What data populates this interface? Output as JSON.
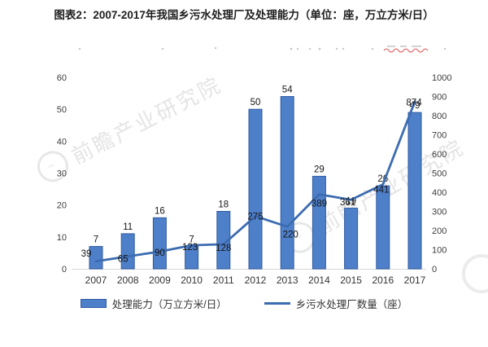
{
  "title": {
    "text": "图表2：2007-2017年我国乡污水处理厂及处理能力（单位：座，万立方米/日）"
  },
  "watermark": {
    "text": "前瞻产业研究院"
  },
  "chart_data": {
    "type": "combo",
    "title": "2007-2017年我国乡污水处理厂及处理能力",
    "categories": [
      "2007",
      "2008",
      "2009",
      "2010",
      "2011",
      "2012",
      "2013",
      "2014",
      "2015",
      "2016",
      "2017"
    ],
    "series": [
      {
        "name": "处理能力（万立方米/日）",
        "type": "bar",
        "axis": "left",
        "values": [
          7,
          11,
          16,
          7,
          18,
          50,
          54,
          29,
          19,
          26,
          49
        ]
      },
      {
        "name": "乡污水处理厂数量（座）",
        "type": "line",
        "axis": "right",
        "values": [
          39,
          65,
          90,
          123,
          128,
          275,
          220,
          389,
          361,
          441,
          874
        ]
      }
    ],
    "left_axis": {
      "min": 0,
      "max": 60,
      "step": 10
    },
    "right_axis": {
      "min": 0,
      "max": 1000,
      "step": 100
    },
    "legend_position": "bottom",
    "grid": false,
    "colors": {
      "bar_fill": "#4e7fc9",
      "bar_stroke": "#2f5ba3",
      "line": "#3c6cb0",
      "axis_text": "#3d3d3d",
      "label_text": "#161616",
      "axis_line": "#d6d6d6",
      "artifact_underline": "#e05050"
    }
  }
}
